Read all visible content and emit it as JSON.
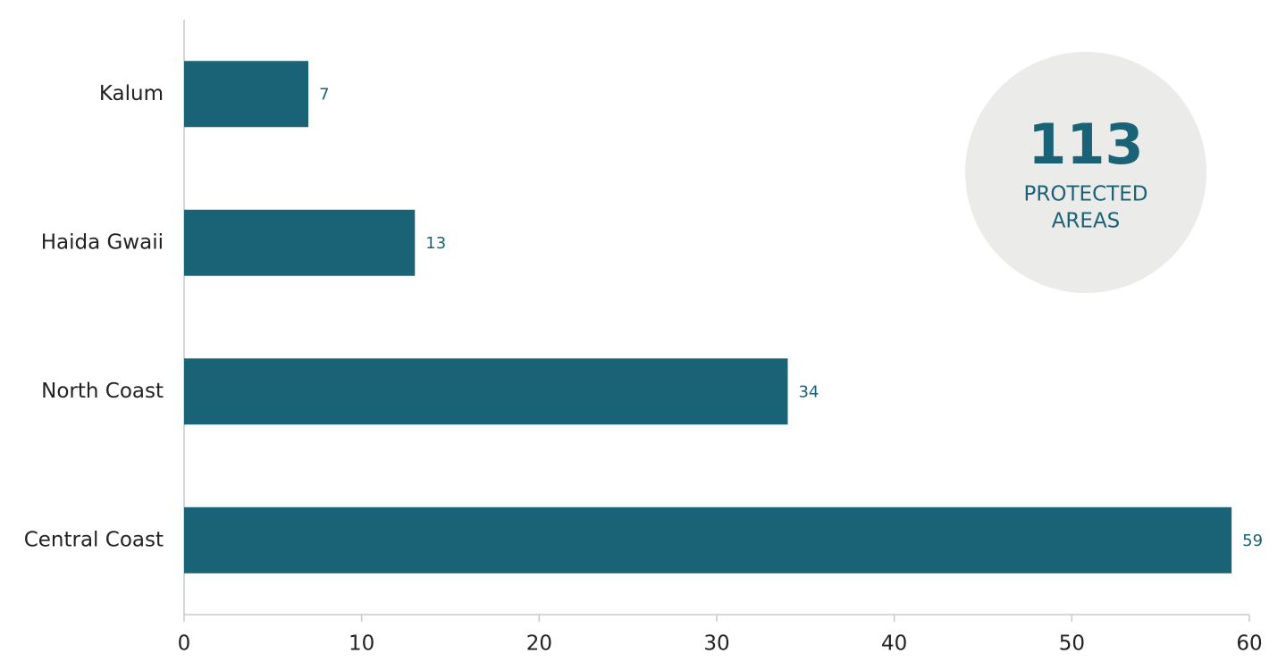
{
  "chart_data": {
    "type": "barh",
    "categories": [
      "Kalum",
      "Haida Gwaii",
      "North Coast",
      "Central Coast"
    ],
    "values": [
      7,
      13,
      34,
      59
    ],
    "color": "#1a6275",
    "xlim": [
      0,
      60
    ],
    "xticks": [
      0,
      10,
      20,
      30,
      40,
      50,
      60
    ],
    "grid": false,
    "total": 113,
    "total_label": [
      "PROTECTED",
      "AREAS"
    ]
  }
}
